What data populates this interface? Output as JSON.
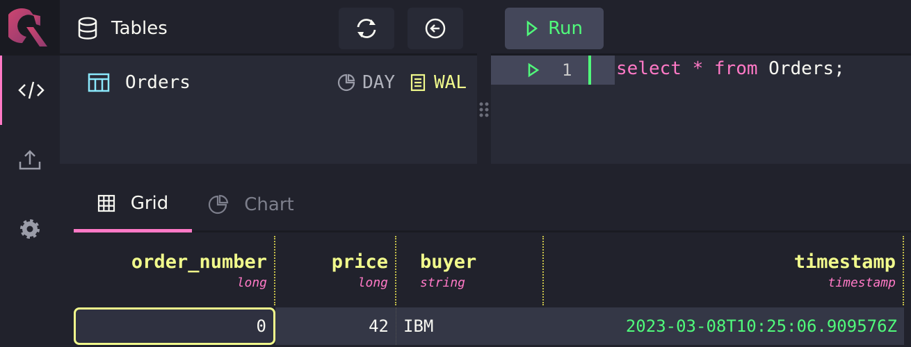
{
  "sidebar": {
    "items": [
      {
        "name": "code",
        "icon": "code-icon"
      },
      {
        "name": "import",
        "icon": "upload-icon"
      },
      {
        "name": "settings",
        "icon": "gear-icon"
      }
    ]
  },
  "tables": {
    "title": "Tables",
    "items": [
      {
        "name": "Orders",
        "partition": "DAY",
        "mode": "WAL"
      }
    ]
  },
  "editor": {
    "run_label": "Run",
    "lines": [
      {
        "number": "1",
        "tokens": [
          {
            "t": "select",
            "c": "keyword"
          },
          {
            "t": " * ",
            "c": "keyword"
          },
          {
            "t": "from",
            "c": "keyword"
          },
          {
            "t": " Orders;",
            "c": "ident"
          }
        ]
      }
    ]
  },
  "results": {
    "tabs": [
      {
        "label": "Grid",
        "active": true
      },
      {
        "label": "Chart",
        "active": false
      }
    ],
    "columns": [
      {
        "name": "order_number",
        "type": "long"
      },
      {
        "name": "price",
        "type": "long"
      },
      {
        "name": "buyer",
        "type": "string"
      },
      {
        "name": "timestamp",
        "type": "timestamp"
      }
    ],
    "rows": [
      [
        "0",
        "42",
        "IBM",
        "2023-03-08T10:25:06.909576Z"
      ]
    ]
  },
  "colors": {
    "accent": "#ff79c6",
    "green": "#50fa7b",
    "yellow": "#f1fa8c",
    "cyan": "#8be9fd",
    "bg": "#282a36"
  }
}
